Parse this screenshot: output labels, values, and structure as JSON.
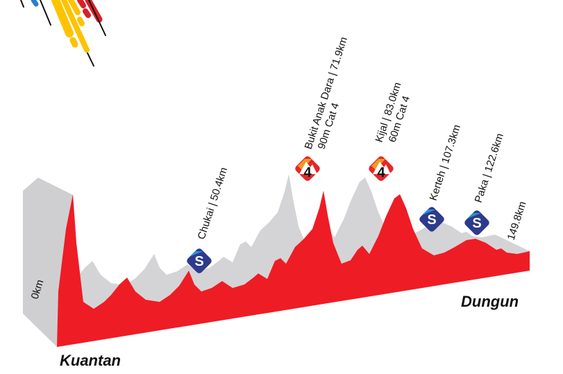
{
  "stage": {
    "start_city": "Kuantan",
    "finish_city": "Dungun",
    "start_distance": "0km",
    "finish_distance": "149.8km"
  },
  "points": [
    {
      "type": "sprint",
      "icon": "S",
      "lines": [
        "Chukai | 50.4km"
      ]
    },
    {
      "type": "kom",
      "icon": "4",
      "lines": [
        "Bukit Anak Dara | 71.9km",
        "90m Cat 4"
      ]
    },
    {
      "type": "kom",
      "icon": "4",
      "lines": [
        "Kijal | 83.0km",
        "60m Cat 4"
      ]
    },
    {
      "type": "sprint",
      "icon": "S",
      "lines": [
        "Kerteh | 107.3km"
      ]
    },
    {
      "type": "sprint",
      "icon": "S",
      "lines": [
        "Paka | 122.6km"
      ]
    }
  ],
  "colors": {
    "profile": "#ee1c25",
    "side": "#d4d4d6",
    "sprint": "#2e3a8c",
    "sprint_light": "#2a8fd8",
    "kom": "#e8262a",
    "kom_light": "#f39a1f",
    "logo_yellow": "#fdc300",
    "logo_red": "#d9202a",
    "logo_blue": "#2a7fc9"
  }
}
